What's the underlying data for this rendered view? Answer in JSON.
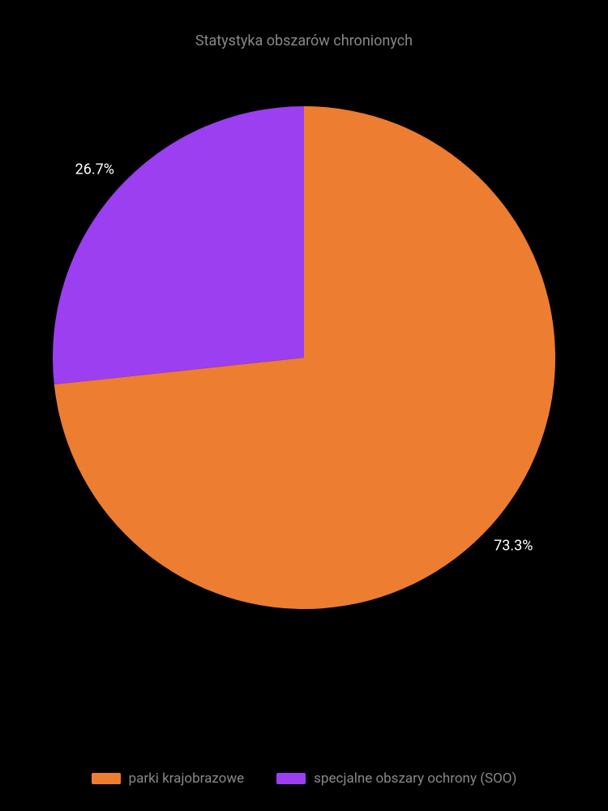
{
  "chart": {
    "type": "pie",
    "title": "Statystyka obszarów chronionych",
    "title_color": "#888888",
    "title_fontsize": 18,
    "background_color": "#000000",
    "slices": [
      {
        "name": "parki krajobrazowe",
        "value": 73.3,
        "label": "73.3%",
        "color": "#ed7d31"
      },
      {
        "name": "specjalne obszary ochrony (SOO)",
        "value": 26.7,
        "label": "26.7%",
        "color": "#9b3ff0"
      }
    ],
    "label_color": "#ffffff",
    "label_fontsize": 18,
    "legend_text_color": "#888888",
    "legend_fontsize": 17,
    "radius": 310,
    "label_offset_ratio": 1.12
  }
}
